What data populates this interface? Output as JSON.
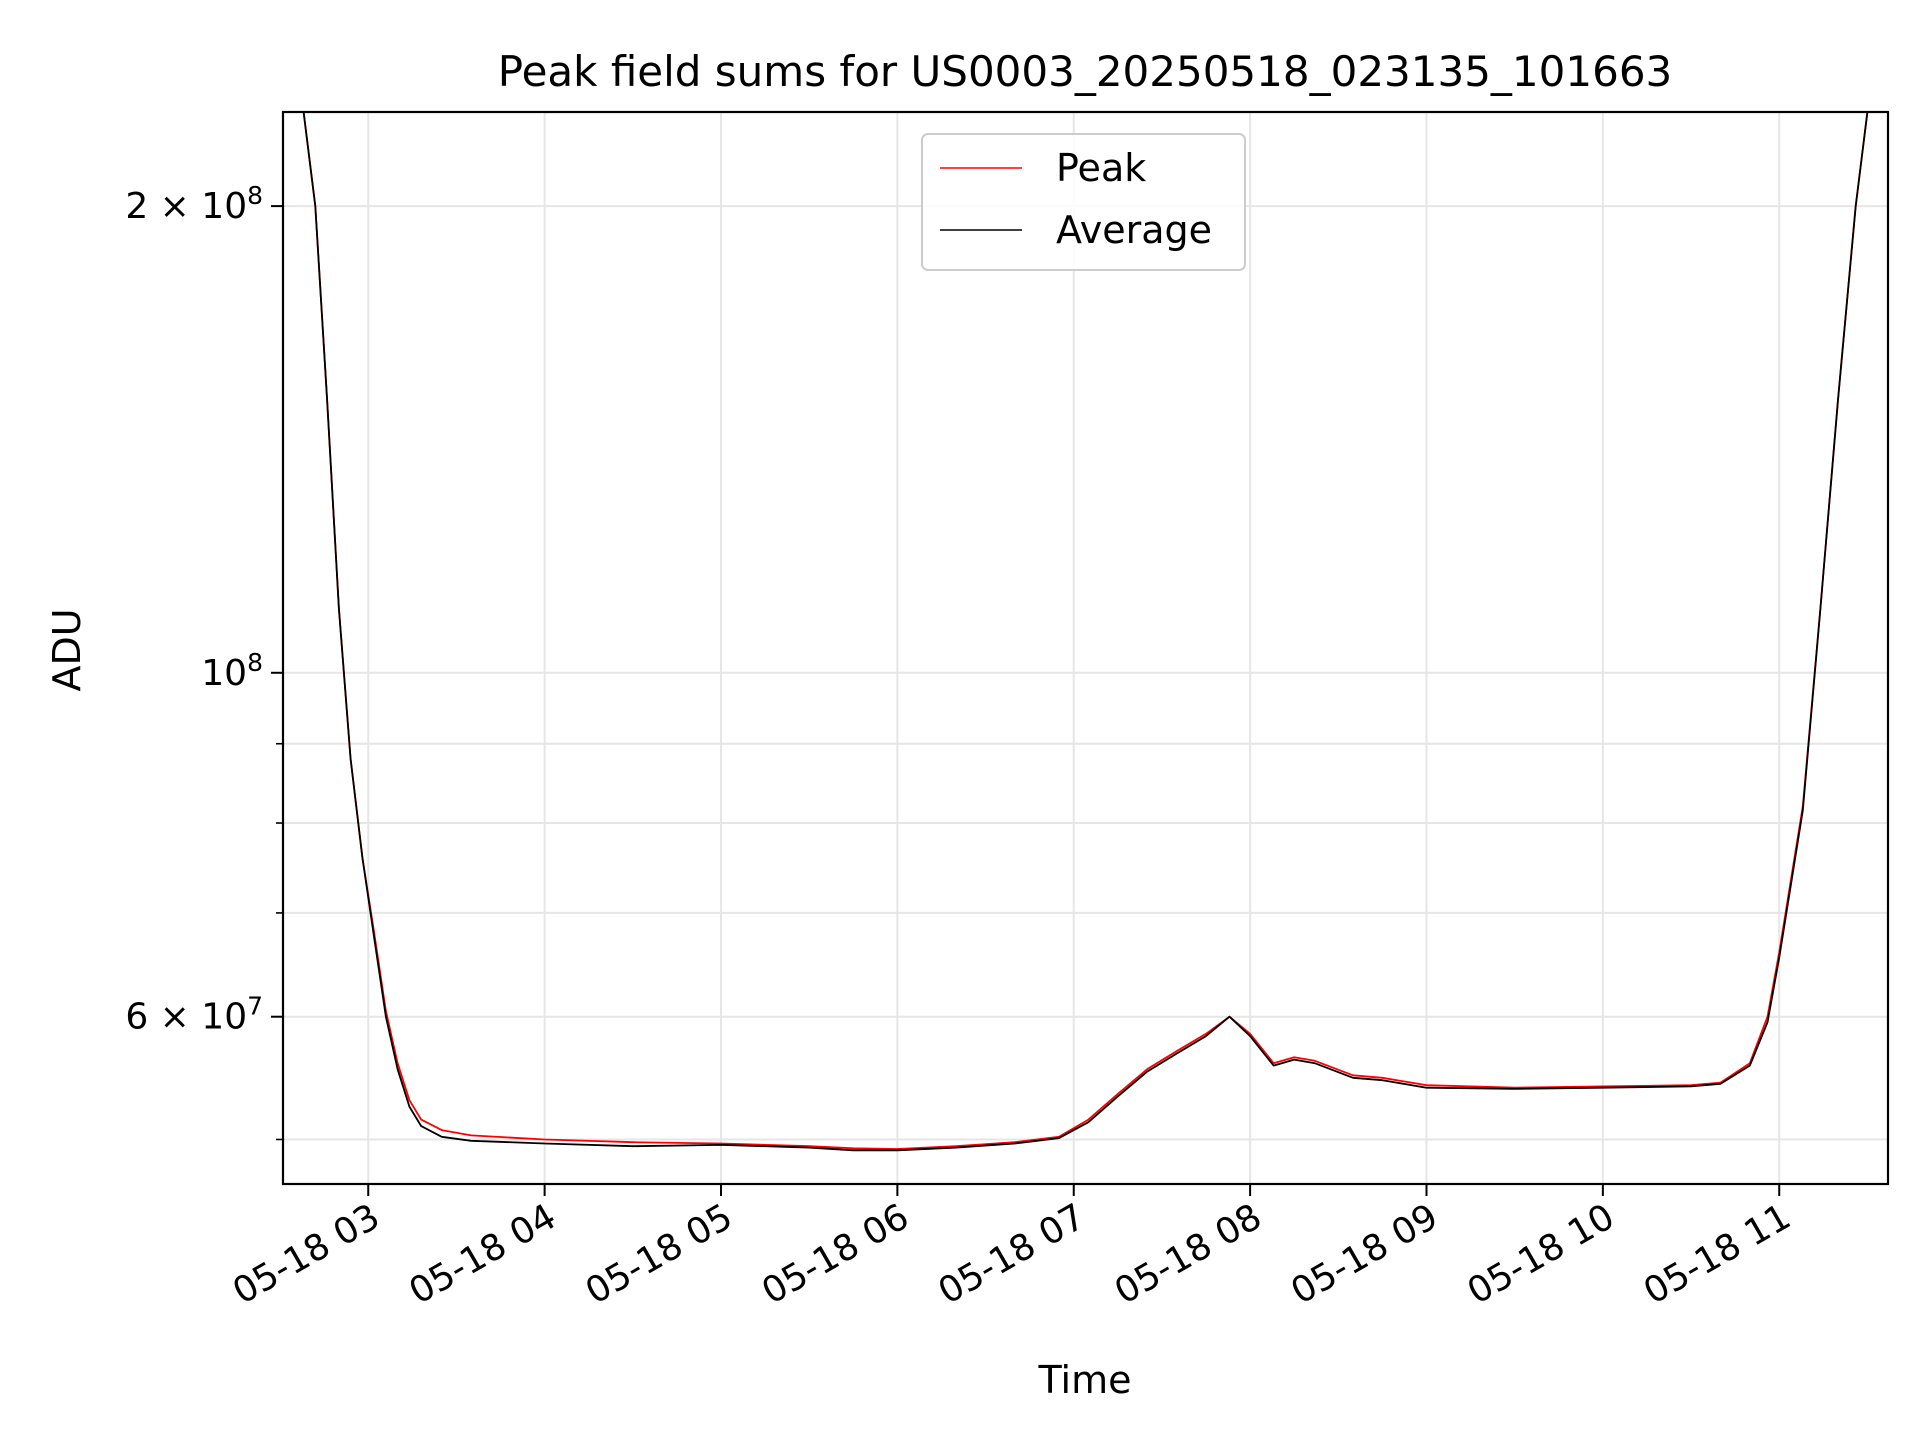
{
  "chart_data": {
    "type": "line",
    "title": "Peak field sums for US0003_20250518_023135_101663",
    "xlabel": "Time",
    "ylabel": "ADU",
    "yscale": "log",
    "ylim": [
      46800000,
      230000000
    ],
    "xlim": [
      "05-18 02:31",
      "05-18 11:37"
    ],
    "grid": true,
    "legend_position": "top-center",
    "x_ticks": [
      "05-18 03",
      "05-18 04",
      "05-18 05",
      "05-18 06",
      "05-18 07",
      "05-18 08",
      "05-18 09",
      "05-18 10",
      "05-18 11"
    ],
    "y_ticks": [
      {
        "value": 200000000,
        "base": "2 × 10",
        "exp": "8"
      },
      {
        "value": 100000000,
        "base": "10",
        "exp": "8"
      },
      {
        "value": 60000000,
        "base": "6 × 10",
        "exp": "7"
      }
    ],
    "y_minor_ticks": [
      70000000,
      80000000,
      90000000,
      50000000
    ],
    "series": [
      {
        "name": "Peak",
        "color": "#ff0000",
        "points": [
          [
            "05-18 02:31",
            230000000
          ],
          [
            "05-18 02:38",
            230000000
          ],
          [
            "05-18 02:42",
            200000000
          ],
          [
            "05-18 02:46",
            150000000
          ],
          [
            "05-18 02:50",
            110000000
          ],
          [
            "05-18 02:54",
            88000000
          ],
          [
            "05-18 02:58",
            76000000
          ],
          [
            "05-18 03:02",
            68000000
          ],
          [
            "05-18 03:06",
            60500000
          ],
          [
            "05-18 03:10",
            56000000
          ],
          [
            "05-18 03:14",
            53000000
          ],
          [
            "05-18 03:18",
            51500000
          ],
          [
            "05-18 03:25",
            50700000
          ],
          [
            "05-18 03:35",
            50300000
          ],
          [
            "05-18 04:00",
            50000000
          ],
          [
            "05-18 04:30",
            49800000
          ],
          [
            "05-18 05:00",
            49700000
          ],
          [
            "05-18 05:30",
            49500000
          ],
          [
            "05-18 05:45",
            49350000
          ],
          [
            "05-18 06:00",
            49300000
          ],
          [
            "05-18 06:20",
            49500000
          ],
          [
            "05-18 06:40",
            49800000
          ],
          [
            "05-18 06:55",
            50200000
          ],
          [
            "05-18 07:05",
            51500000
          ],
          [
            "05-18 07:15",
            53500000
          ],
          [
            "05-18 07:25",
            55500000
          ],
          [
            "05-18 07:35",
            57000000
          ],
          [
            "05-18 07:45",
            58500000
          ],
          [
            "05-18 07:53",
            60000000
          ],
          [
            "05-18 08:00",
            58500000
          ],
          [
            "05-18 08:08",
            56000000
          ],
          [
            "05-18 08:15",
            56500000
          ],
          [
            "05-18 08:22",
            56200000
          ],
          [
            "05-18 08:35",
            55000000
          ],
          [
            "05-18 08:45",
            54800000
          ],
          [
            "05-18 09:00",
            54200000
          ],
          [
            "05-18 09:30",
            54000000
          ],
          [
            "05-18 10:00",
            54100000
          ],
          [
            "05-18 10:30",
            54200000
          ],
          [
            "05-18 10:40",
            54400000
          ],
          [
            "05-18 10:50",
            56000000
          ],
          [
            "05-18 10:56",
            60000000
          ],
          [
            "05-18 11:00",
            66000000
          ],
          [
            "05-18 11:08",
            82000000
          ],
          [
            "05-18 11:14",
            110000000
          ],
          [
            "05-18 11:20",
            150000000
          ],
          [
            "05-18 11:26",
            200000000
          ],
          [
            "05-18 11:30",
            230000000
          ],
          [
            "05-18 11:37",
            230000000
          ]
        ]
      },
      {
        "name": "Average",
        "color": "#000000",
        "points": [
          [
            "05-18 02:31",
            230000000
          ],
          [
            "05-18 02:38",
            230000000
          ],
          [
            "05-18 02:42",
            200000000
          ],
          [
            "05-18 02:46",
            150000000
          ],
          [
            "05-18 02:50",
            110000000
          ],
          [
            "05-18 02:54",
            88000000
          ],
          [
            "05-18 02:58",
            76000000
          ],
          [
            "05-18 03:02",
            67500000
          ],
          [
            "05-18 03:06",
            60000000
          ],
          [
            "05-18 03:10",
            55500000
          ],
          [
            "05-18 03:14",
            52500000
          ],
          [
            "05-18 03:18",
            51000000
          ],
          [
            "05-18 03:25",
            50200000
          ],
          [
            "05-18 03:35",
            49900000
          ],
          [
            "05-18 04:00",
            49700000
          ],
          [
            "05-18 04:30",
            49500000
          ],
          [
            "05-18 05:00",
            49600000
          ],
          [
            "05-18 05:30",
            49400000
          ],
          [
            "05-18 05:45",
            49200000
          ],
          [
            "05-18 06:00",
            49200000
          ],
          [
            "05-18 06:20",
            49400000
          ],
          [
            "05-18 06:40",
            49700000
          ],
          [
            "05-18 06:55",
            50100000
          ],
          [
            "05-18 07:05",
            51300000
          ],
          [
            "05-18 07:15",
            53300000
          ],
          [
            "05-18 07:25",
            55300000
          ],
          [
            "05-18 07:35",
            56800000
          ],
          [
            "05-18 07:45",
            58300000
          ],
          [
            "05-18 07:53",
            60000000
          ],
          [
            "05-18 08:00",
            58300000
          ],
          [
            "05-18 08:08",
            55800000
          ],
          [
            "05-18 08:15",
            56300000
          ],
          [
            "05-18 08:22",
            56000000
          ],
          [
            "05-18 08:35",
            54800000
          ],
          [
            "05-18 08:45",
            54600000
          ],
          [
            "05-18 09:00",
            54000000
          ],
          [
            "05-18 09:30",
            53900000
          ],
          [
            "05-18 10:00",
            54000000
          ],
          [
            "05-18 10:30",
            54100000
          ],
          [
            "05-18 10:40",
            54300000
          ],
          [
            "05-18 10:50",
            55800000
          ],
          [
            "05-18 10:56",
            59500000
          ],
          [
            "05-18 11:00",
            65500000
          ],
          [
            "05-18 11:08",
            81500000
          ],
          [
            "05-18 11:14",
            110000000
          ],
          [
            "05-18 11:20",
            150000000
          ],
          [
            "05-18 11:26",
            200000000
          ],
          [
            "05-18 11:30",
            230000000
          ],
          [
            "05-18 11:37",
            230000000
          ]
        ]
      }
    ]
  }
}
